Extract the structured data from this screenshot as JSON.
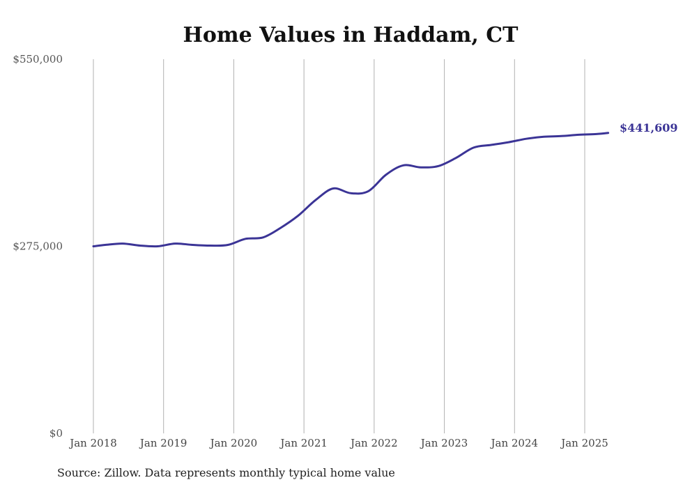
{
  "chart_data": {
    "type": "line",
    "title": "Home Values in Haddam, CT",
    "source": "Source: Zillow. Data represents monthly typical home value",
    "xlabel": "",
    "ylabel": "",
    "ylim": [
      0,
      550000
    ],
    "y_ticks": [
      {
        "value": 0,
        "label": "$0"
      },
      {
        "value": 275000,
        "label": "$275,000"
      },
      {
        "value": 550000,
        "label": "$550,000"
      }
    ],
    "x_ticks": [
      {
        "date": "2018-01",
        "label": "Jan 2018"
      },
      {
        "date": "2019-01",
        "label": "Jan 2019"
      },
      {
        "date": "2020-01",
        "label": "Jan 2020"
      },
      {
        "date": "2021-01",
        "label": "Jan 2021"
      },
      {
        "date": "2022-01",
        "label": "Jan 2022"
      },
      {
        "date": "2023-01",
        "label": "Jan 2023"
      },
      {
        "date": "2024-01",
        "label": "Jan 2024"
      },
      {
        "date": "2025-01",
        "label": "Jan 2025"
      }
    ],
    "grid": "vertical lines at each January",
    "line_color": "#3b3496",
    "end_label": "$441,609",
    "series": [
      {
        "x": [
          "2018-01",
          "2018-03",
          "2018-06",
          "2018-09",
          "2018-12",
          "2019-03",
          "2019-06",
          "2019-09",
          "2019-12",
          "2020-03",
          "2020-06",
          "2020-09",
          "2020-12",
          "2021-03",
          "2021-06",
          "2021-09",
          "2021-12",
          "2022-03",
          "2022-06",
          "2022-09",
          "2022-12",
          "2023-03",
          "2023-06",
          "2023-09",
          "2023-12",
          "2024-03",
          "2024-06",
          "2024-09",
          "2024-12",
          "2025-03",
          "2025-05"
        ],
        "values": [
          275000,
          277000,
          279000,
          276000,
          275000,
          279000,
          277000,
          276000,
          277000,
          286000,
          288000,
          302000,
          320000,
          343000,
          360000,
          353000,
          356000,
          380000,
          394000,
          391000,
          393000,
          405000,
          420000,
          424000,
          428000,
          433000,
          436000,
          437000,
          439000,
          440000,
          441609
        ]
      }
    ]
  }
}
